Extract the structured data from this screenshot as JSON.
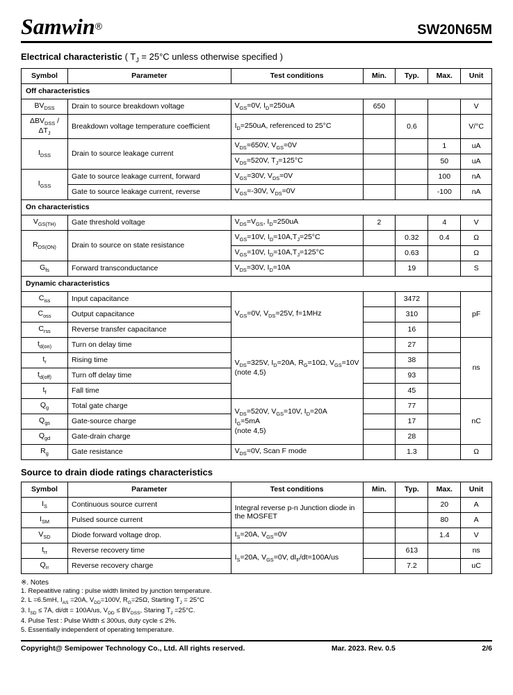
{
  "header": {
    "logo": "Samwin",
    "reg": "®",
    "partno": "SW20N65M"
  },
  "section1": {
    "title_prefix": "Electrical characteristic",
    "title_suffix": " ( T",
    "title_sub": "J",
    "title_end": " = 25°C unless otherwise specified )"
  },
  "cols": {
    "symbol": "Symbol",
    "parameter": "Parameter",
    "conditions": "Test conditions",
    "min": "Min.",
    "typ": "Typ.",
    "max": "Max.",
    "unit": "Unit"
  },
  "sub_off": "Off characteristics",
  "sub_on": "On characteristics",
  "sub_dyn": "Dynamic characteristics",
  "off": {
    "r1": {
      "sym": "BV<sub>DSS</sub>",
      "param": "Drain to source breakdown voltage",
      "cond": "V<sub>GS</sub>=0V, I<sub>D</sub>=250uA",
      "min": "650",
      "typ": "",
      "max": "",
      "unit": "V"
    },
    "r2": {
      "sym": "ΔBV<sub>DSS</sub> / ΔT<sub>J</sub>",
      "param": "Breakdown voltage temperature coefficient",
      "cond": "I<sub>D</sub>=250uA, referenced to 25°C",
      "min": "",
      "typ": "0.6",
      "max": "",
      "unit": "V/°C"
    },
    "r3": {
      "sym": "I<sub>DSS</sub>",
      "param": "Drain to source leakage current",
      "cond1": "V<sub>DS</sub>=650V, V<sub>GS</sub>=0V",
      "max1": "1",
      "unit1": "uA",
      "cond2": "V<sub>DS</sub>=520V, T<sub>J</sub>=125°C",
      "max2": "50",
      "unit2": "uA"
    },
    "r4": {
      "sym": "I<sub>GSS</sub>",
      "param1": "Gate to source leakage current, forward",
      "cond1": "V<sub>GS</sub>=30V, V<sub>DS</sub>=0V",
      "max1": "100",
      "unit1": "nA",
      "param2": "Gate to source leakage current, reverse",
      "cond2": "V<sub>GS</sub>=-30V, V<sub>DS</sub>=0V",
      "max2": "-100",
      "unit2": "nA"
    }
  },
  "on": {
    "r1": {
      "sym": "V<sub>GS(TH)</sub>",
      "param": "Gate threshold voltage",
      "cond": "V<sub>DS</sub>=V<sub>GS</sub>, I<sub>D</sub>=250uA",
      "min": "2",
      "typ": "",
      "max": "4",
      "unit": "V"
    },
    "r2": {
      "sym": "R<sub>DS(ON)</sub>",
      "param": "Drain to source on state resistance",
      "cond1": "V<sub>GS</sub>=10V, I<sub>D</sub>=10A,T<sub>J</sub>=25°C",
      "typ1": "0.32",
      "max1": "0.4",
      "unit1": "Ω",
      "cond2": "V<sub>GS</sub>=10V, I<sub>D</sub>=10A,T<sub>J</sub>=125°C",
      "typ2": "0.63",
      "unit2": "Ω"
    },
    "r3": {
      "sym": "G<sub>fs</sub>",
      "param": "Forward transconductance",
      "cond": "V<sub>DS</sub>=30V, I<sub>D</sub>=10A",
      "typ": "19",
      "unit": "S"
    }
  },
  "dyn": {
    "r1": {
      "sym": "C<sub>iss</sub>",
      "param": "Input capacitance",
      "typ": "3472"
    },
    "r2": {
      "sym": "C<sub>oss</sub>",
      "param": "Output capacitance",
      "typ": "310"
    },
    "r3": {
      "sym": "C<sub>rss</sub>",
      "param": "Reverse transfer capacitance",
      "typ": "16"
    },
    "cap_cond": "V<sub>GS</sub>=0V, V<sub>DS</sub>=25V, f=1MHz",
    "cap_unit": "pF",
    "r4": {
      "sym": "t<sub>d(on)</sub>",
      "param": "Turn on delay time",
      "typ": "27"
    },
    "r5": {
      "sym": "t<sub>r</sub>",
      "param": "Rising time",
      "typ": "38"
    },
    "r6": {
      "sym": "t<sub>d(off)</sub>",
      "param": "Turn off delay time",
      "typ": "93"
    },
    "r7": {
      "sym": "t<sub>f</sub>",
      "param": "Fall time",
      "typ": "45"
    },
    "time_cond": "V<sub>DS</sub>=325V, I<sub>D</sub>=20A, R<sub>G</sub>=10Ω, V<sub>GS</sub>=10V<br>(note 4,5)",
    "time_unit": "ns",
    "r8": {
      "sym": "Q<sub>g</sub>",
      "param": "Total gate charge",
      "typ": "77"
    },
    "r9": {
      "sym": "Q<sub>gs</sub>",
      "param": "Gate-source charge",
      "typ": "17"
    },
    "r10": {
      "sym": "Q<sub>gd</sub>",
      "param": "Gate-drain charge",
      "typ": "28"
    },
    "q_cond": "V<sub>DS</sub>=520V, V<sub>GS</sub>=10V, I<sub>D</sub>=20A<br>I<sub>G</sub>=5mA<br>(note 4,5)",
    "q_unit": "nC",
    "r11": {
      "sym": "R<sub>g</sub>",
      "param": "Gate resistance",
      "cond": "V<sub>DS</sub>=0V, Scan F mode",
      "typ": "1.3",
      "unit": "Ω"
    }
  },
  "section2": {
    "title": "Source to drain diode ratings characteristics"
  },
  "diode": {
    "r1": {
      "sym": "I<sub>S</sub>",
      "param": "Continuous source current",
      "max": "20",
      "unit": "A"
    },
    "r2": {
      "sym": "I<sub>SM</sub>",
      "param": "Pulsed source current",
      "max": "80",
      "unit": "A"
    },
    "diode_cond": "Integral reverse p-n Junction diode in the MOSFET",
    "r3": {
      "sym": "V<sub>SD</sub>",
      "param": "Diode forward voltage drop.",
      "cond": "I<sub>S</sub>=20A, V<sub>GS</sub>=0V",
      "max": "1.4",
      "unit": "V"
    },
    "r4": {
      "sym": "t<sub>rr</sub>",
      "param": "Reverse recovery time",
      "typ": "613",
      "unit": "ns"
    },
    "r5": {
      "sym": "Q<sub>rr</sub>",
      "param": "Reverse recovery charge",
      "typ": "7.2",
      "unit": "uC"
    },
    "rr_cond": "I<sub>S</sub>=20A, V<sub>GS</sub>=0V, dI<sub>F</sub>/dt=100A/us"
  },
  "notes": {
    "title": "※. Notes",
    "n1": "1.      Repeatitive rating : pulse width limited by junction temperature.",
    "n2": "2.      L =6.5mH, I<sub>AS</sub> =20A, V<sub>DD</sub>=100V, R<sub>G</sub>=25Ω, Starting T<sub>J</sub> = 25°C",
    "n3": "3.      I<sub>SD</sub> ≤ 7A, di/dt = 100A/us, V<sub>DD</sub> ≤ BV<sub>DSS</sub>, Staring T<sub>J</sub> =25°C.",
    "n4": "4.      Pulse Test : Pulse Width ≤ 300us, duty cycle ≤ 2%.",
    "n5": "5.      Essentially independent of operating temperature."
  },
  "footer": {
    "left": "Copyright@ Semipower Technology Co., Ltd. All rights reserved.",
    "mid": "Mar. 2023. Rev. 0.5",
    "right": "2/6"
  }
}
